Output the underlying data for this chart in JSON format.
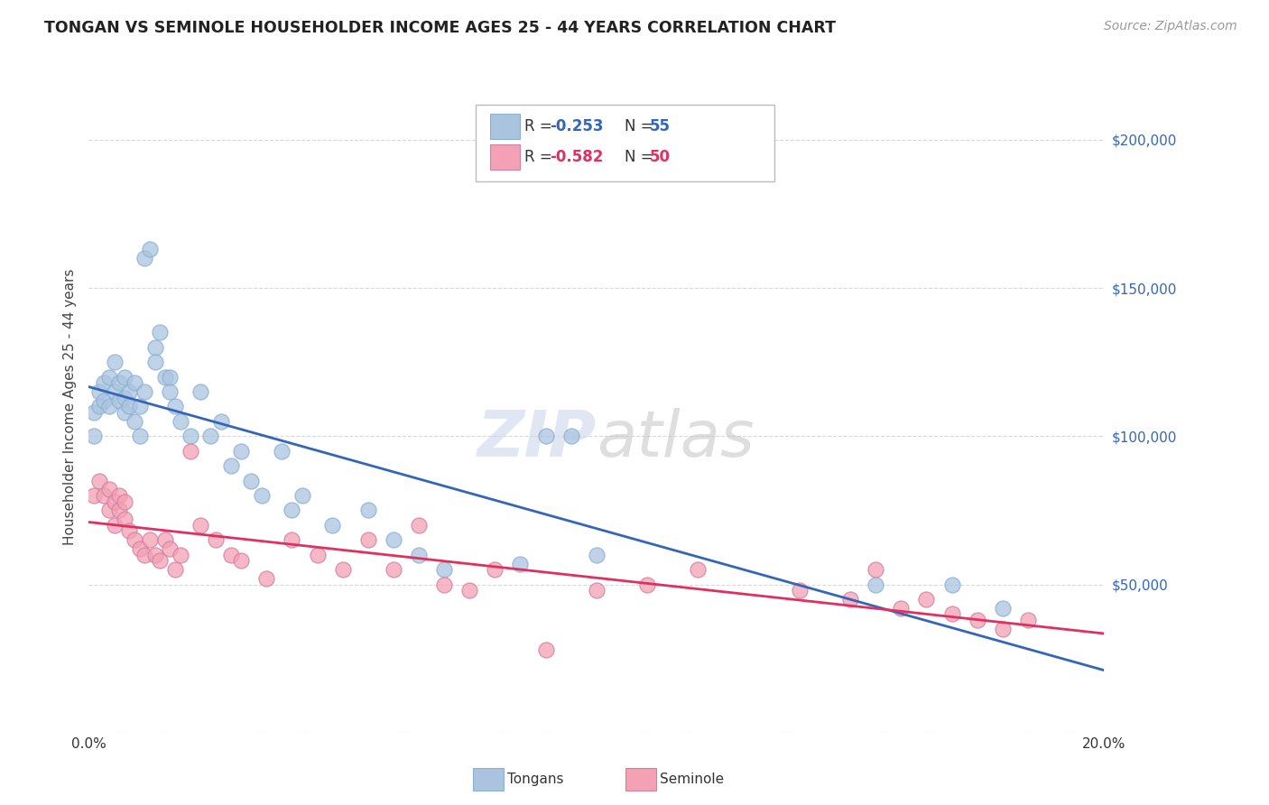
{
  "title": "TONGAN VS SEMINOLE HOUSEHOLDER INCOME AGES 25 - 44 YEARS CORRELATION CHART",
  "source": "Source: ZipAtlas.com",
  "ylabel": "Householder Income Ages 25 - 44 years",
  "xlim": [
    0.0,
    0.2
  ],
  "ylim": [
    0,
    220000
  ],
  "background_color": "#ffffff",
  "grid_color": "#d8d8d8",
  "tongans_color": "#aac4e0",
  "seminole_color": "#f4a0b5",
  "tongans_line_color": "#3366bb",
  "seminole_line_color": "#e03060",
  "tongans_x": [
    0.001,
    0.001,
    0.002,
    0.002,
    0.003,
    0.003,
    0.004,
    0.004,
    0.005,
    0.005,
    0.006,
    0.006,
    0.007,
    0.007,
    0.007,
    0.008,
    0.008,
    0.009,
    0.009,
    0.01,
    0.01,
    0.011,
    0.011,
    0.012,
    0.013,
    0.013,
    0.014,
    0.015,
    0.016,
    0.016,
    0.017,
    0.018,
    0.02,
    0.022,
    0.024,
    0.026,
    0.028,
    0.03,
    0.032,
    0.034,
    0.038,
    0.04,
    0.042,
    0.048,
    0.055,
    0.06,
    0.065,
    0.07,
    0.085,
    0.09,
    0.095,
    0.1,
    0.155,
    0.17,
    0.18
  ],
  "tongans_y": [
    100000,
    108000,
    110000,
    115000,
    112000,
    118000,
    110000,
    120000,
    115000,
    125000,
    112000,
    118000,
    113000,
    120000,
    108000,
    115000,
    110000,
    118000,
    105000,
    100000,
    110000,
    115000,
    160000,
    163000,
    130000,
    125000,
    135000,
    120000,
    115000,
    120000,
    110000,
    105000,
    100000,
    115000,
    100000,
    105000,
    90000,
    95000,
    85000,
    80000,
    95000,
    75000,
    80000,
    70000,
    75000,
    65000,
    60000,
    55000,
    57000,
    100000,
    100000,
    60000,
    50000,
    50000,
    42000
  ],
  "seminole_x": [
    0.001,
    0.002,
    0.003,
    0.004,
    0.004,
    0.005,
    0.005,
    0.006,
    0.006,
    0.007,
    0.007,
    0.008,
    0.009,
    0.01,
    0.011,
    0.012,
    0.013,
    0.014,
    0.015,
    0.016,
    0.017,
    0.018,
    0.02,
    0.022,
    0.025,
    0.028,
    0.03,
    0.035,
    0.04,
    0.045,
    0.05,
    0.055,
    0.06,
    0.065,
    0.07,
    0.075,
    0.08,
    0.09,
    0.1,
    0.11,
    0.12,
    0.14,
    0.15,
    0.155,
    0.16,
    0.165,
    0.17,
    0.175,
    0.18,
    0.185
  ],
  "seminole_y": [
    80000,
    85000,
    80000,
    82000,
    75000,
    78000,
    70000,
    75000,
    80000,
    72000,
    78000,
    68000,
    65000,
    62000,
    60000,
    65000,
    60000,
    58000,
    65000,
    62000,
    55000,
    60000,
    95000,
    70000,
    65000,
    60000,
    58000,
    52000,
    65000,
    60000,
    55000,
    65000,
    55000,
    70000,
    50000,
    48000,
    55000,
    28000,
    48000,
    50000,
    55000,
    48000,
    45000,
    55000,
    42000,
    45000,
    40000,
    38000,
    35000,
    38000
  ]
}
